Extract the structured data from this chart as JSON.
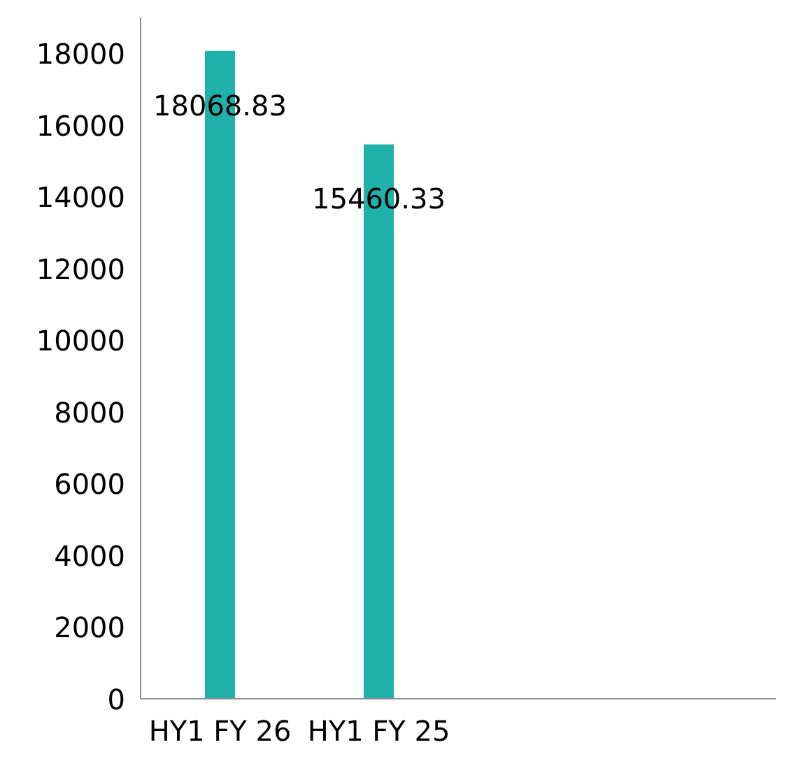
{
  "chart_data": {
    "type": "bar",
    "categories": [
      "HY1 FY 26",
      "HY1 FY 25",
      null,
      null
    ],
    "values": [
      18068.83,
      15460.33,
      null,
      null
    ],
    "color": "#20b2aa",
    "ylim": [
      0,
      19000
    ],
    "yticks": [
      0,
      2000,
      4000,
      6000,
      8000,
      10000,
      12000,
      14000,
      16000,
      18000
    ],
    "data_labels": true,
    "grid": false
  }
}
